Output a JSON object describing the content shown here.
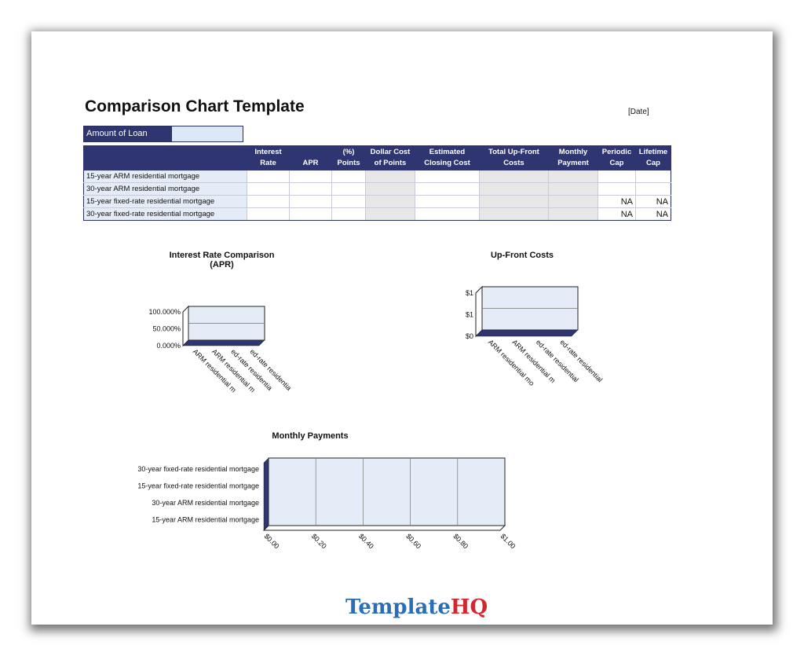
{
  "document": {
    "title": "Comparison Chart Template",
    "date": "[Date]",
    "loan_label": "Amount of Loan",
    "loan_value": ""
  },
  "table": {
    "headers": [
      "",
      "Interest\nRate",
      "APR",
      "(%)\nPoints",
      "Dollar Cost\nof Points",
      "Estimated\nClosing Cost",
      "Total Up-Front\nCosts",
      "Monthly\nPayment",
      "Periodic\nCap",
      "Lifetime\nCap"
    ],
    "rows": [
      {
        "label": "15-year ARM residential mortgage",
        "periodic_cap": "",
        "lifetime_cap": ""
      },
      {
        "label": "30-year ARM residential mortgage",
        "periodic_cap": "",
        "lifetime_cap": ""
      },
      {
        "label": "15-year fixed-rate residential mortgage",
        "periodic_cap": "NA",
        "lifetime_cap": "NA"
      },
      {
        "label": "30-year fixed-rate residential mortgage",
        "periodic_cap": "NA",
        "lifetime_cap": "NA"
      }
    ]
  },
  "chart_data": [
    {
      "type": "bar",
      "title": "Interest Rate Comparison\n(APR)",
      "categories": [
        "ARM residential m",
        "ARM residential m",
        "ed-rate residentia",
        "ed-rate residentia"
      ],
      "values": [
        0,
        0,
        0,
        0
      ],
      "ytick_labels": [
        "100.000%",
        "50.000%",
        "0.000%"
      ],
      "ylim": [
        0,
        1
      ]
    },
    {
      "type": "bar",
      "title": "Up-Front Costs",
      "categories": [
        "ARM residential mo",
        "ARM residential m",
        "ed-rate residential",
        "ed-rate residential"
      ],
      "values": [
        0,
        0,
        0,
        0
      ],
      "ytick_labels": [
        "$1",
        "$1",
        "$0"
      ],
      "ylim": [
        0,
        1
      ]
    },
    {
      "type": "bar",
      "orientation": "horizontal",
      "title": "Monthly Payments",
      "categories": [
        "30-year fixed-rate residential mortgage",
        "15-year fixed-rate residential mortgage",
        "30-year ARM residential mortgage",
        "15-year ARM residential mortgage"
      ],
      "values": [
        0,
        0,
        0,
        0
      ],
      "xtick_labels": [
        "$0.00",
        "$0.20",
        "$0.40",
        "$0.60",
        "$0.80",
        "$1.00"
      ],
      "xlim": [
        0,
        1
      ]
    }
  ],
  "branding": {
    "logo_part1": "Template",
    "logo_part2": "HQ"
  },
  "colors": {
    "header": "#2f3570",
    "row_label": "#e3ecf7",
    "chart_fill": "#e3ecf7",
    "gray_cell": "#e7e7e7"
  }
}
